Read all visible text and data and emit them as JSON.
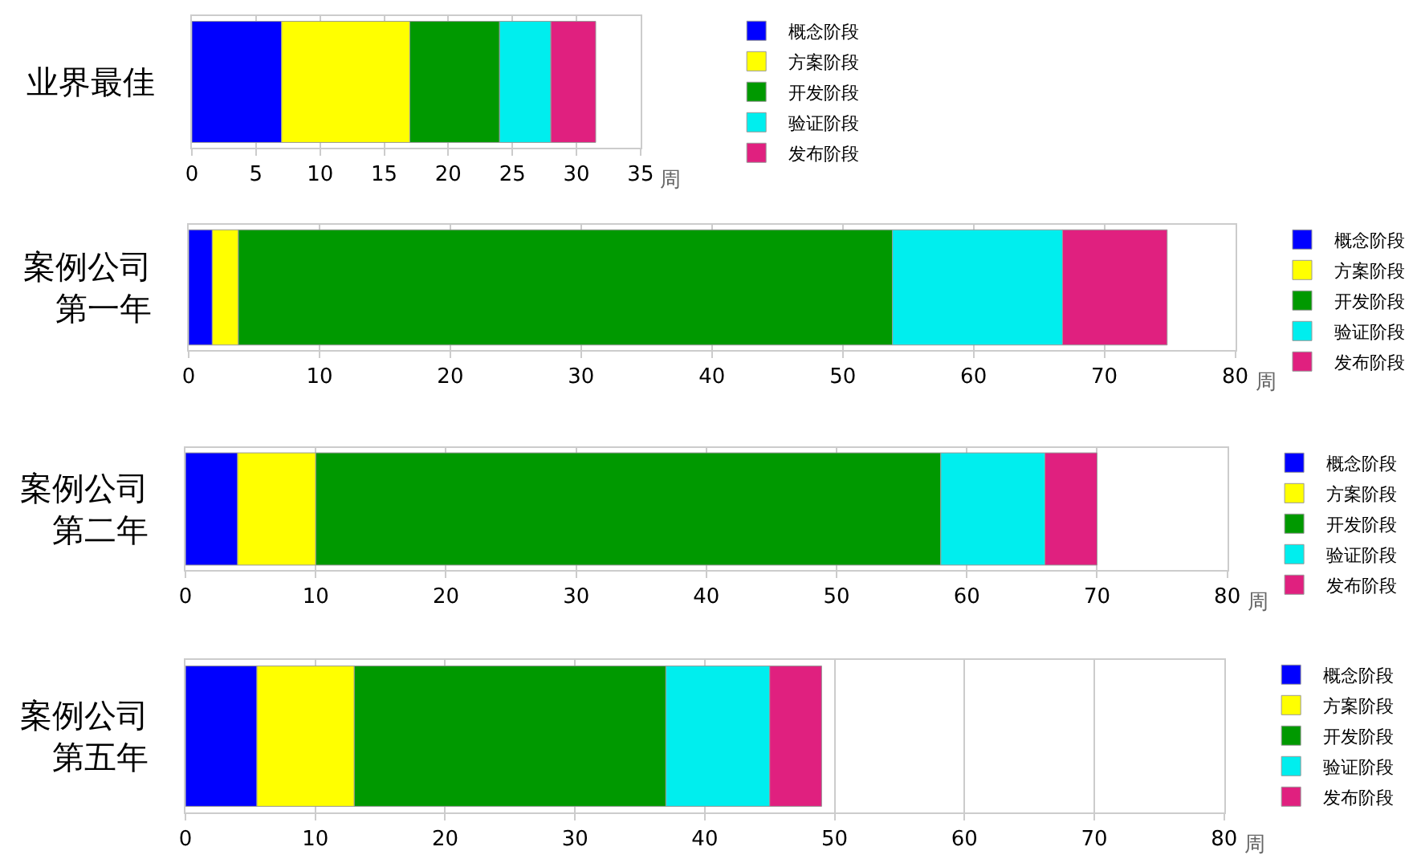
{
  "chart_data": [
    {
      "type": "bar",
      "orientation": "horizontal",
      "stacked": true,
      "categories": [
        "业界最佳"
      ],
      "xlabel": "周",
      "xlim": [
        0,
        35
      ],
      "xticks": [
        0,
        5,
        10,
        15,
        20,
        25,
        30,
        35
      ],
      "grid": "x",
      "legend": "right",
      "series": [
        {
          "name": "概念阶段",
          "color": "#0000ff",
          "values": [
            7
          ]
        },
        {
          "name": "方案阶段",
          "color": "#ffff00",
          "values": [
            10
          ]
        },
        {
          "name": "开发阶段",
          "color": "#009900",
          "values": [
            7
          ]
        },
        {
          "name": "验证阶段",
          "color": "#00eeee",
          "values": [
            4
          ]
        },
        {
          "name": "发布阶段",
          "color": "#e0207f",
          "values": [
            3.5
          ]
        }
      ]
    },
    {
      "type": "bar",
      "orientation": "horizontal",
      "stacked": true,
      "categories": [
        "案例公司第一年"
      ],
      "xlabel": "周",
      "xlim": [
        0,
        80
      ],
      "xticks": [
        0,
        10,
        20,
        30,
        40,
        50,
        60,
        70,
        80
      ],
      "grid": "x",
      "legend": "right",
      "series": [
        {
          "name": "概念阶段",
          "color": "#0000ff",
          "values": [
            1.8
          ]
        },
        {
          "name": "方案阶段",
          "color": "#ffff00",
          "values": [
            2
          ]
        },
        {
          "name": "开发阶段",
          "color": "#009900",
          "values": [
            50
          ]
        },
        {
          "name": "验证阶段",
          "color": "#00eeee",
          "values": [
            13
          ]
        },
        {
          "name": "发布阶段",
          "color": "#e0207f",
          "values": [
            8
          ]
        }
      ]
    },
    {
      "type": "bar",
      "orientation": "horizontal",
      "stacked": true,
      "categories": [
        "案例公司第二年"
      ],
      "xlabel": "周",
      "xlim": [
        0,
        80
      ],
      "xticks": [
        0,
        10,
        20,
        30,
        40,
        50,
        60,
        70,
        80
      ],
      "grid": "x",
      "legend": "right",
      "series": [
        {
          "name": "概念阶段",
          "color": "#0000ff",
          "values": [
            4
          ]
        },
        {
          "name": "方案阶段",
          "color": "#ffff00",
          "values": [
            6
          ]
        },
        {
          "name": "开发阶段",
          "color": "#009900",
          "values": [
            48
          ]
        },
        {
          "name": "验证阶段",
          "color": "#00eeee",
          "values": [
            8
          ]
        },
        {
          "name": "发布阶段",
          "color": "#e0207f",
          "values": [
            4
          ]
        }
      ]
    },
    {
      "type": "bar",
      "orientation": "horizontal",
      "stacked": true,
      "categories": [
        "案例公司第五年"
      ],
      "xlabel": "周",
      "xlim": [
        0,
        80
      ],
      "xticks": [
        0,
        10,
        20,
        30,
        40,
        50,
        60,
        70,
        80
      ],
      "grid": "x",
      "legend": "right",
      "series": [
        {
          "name": "概念阶段",
          "color": "#0000ff",
          "values": [
            5.5
          ]
        },
        {
          "name": "方案阶段",
          "color": "#ffff00",
          "values": [
            7.5
          ]
        },
        {
          "name": "开发阶段",
          "color": "#009900",
          "values": [
            24
          ]
        },
        {
          "name": "验证阶段",
          "color": "#00eeee",
          "values": [
            8
          ]
        },
        {
          "name": "发布阶段",
          "color": "#e0207f",
          "values": [
            4
          ]
        }
      ]
    }
  ]
}
